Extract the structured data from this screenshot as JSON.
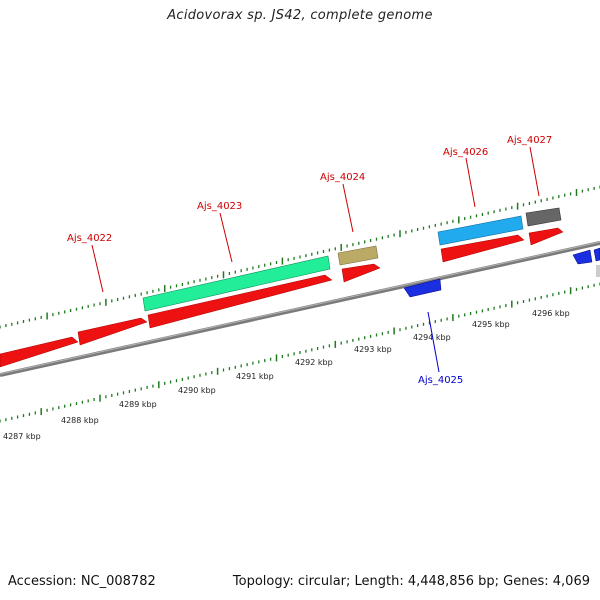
{
  "title": "Acidovorax sp. JS42, complete genome",
  "footer": {
    "accession": "Accession: NC_008782",
    "summary": "Topology: circular; Length: 4,448,856 bp; Genes: 4,069"
  },
  "colors": {
    "backbone": "#888888",
    "tick": "#1f7a1f",
    "cds": "#ee1111",
    "forward_label": "#cc0000",
    "reverse_label": "#0000cc",
    "reverse_cds": "#1a2fe0",
    "gene_4023": "#22ee99",
    "gene_4024": "#bbaa66",
    "gene_4026": "#22aaee",
    "gene_4027": "#666666"
  },
  "ruler": {
    "unit": "kbp",
    "labels": [
      "4287 kbp",
      "4288 kbp",
      "4289 kbp",
      "4290 kbp",
      "4291 kbp",
      "4292 kbp",
      "4293 kbp",
      "4294 kbp",
      "4295 kbp",
      "4296 kbp"
    ]
  },
  "gene_labels": {
    "ajs_4022": "Ajs_4022",
    "ajs_4023": "Ajs_4023",
    "ajs_4024": "Ajs_4024",
    "ajs_4025": "Ajs_4025",
    "ajs_4026": "Ajs_4026",
    "ajs_4027": "Ajs_4027"
  }
}
